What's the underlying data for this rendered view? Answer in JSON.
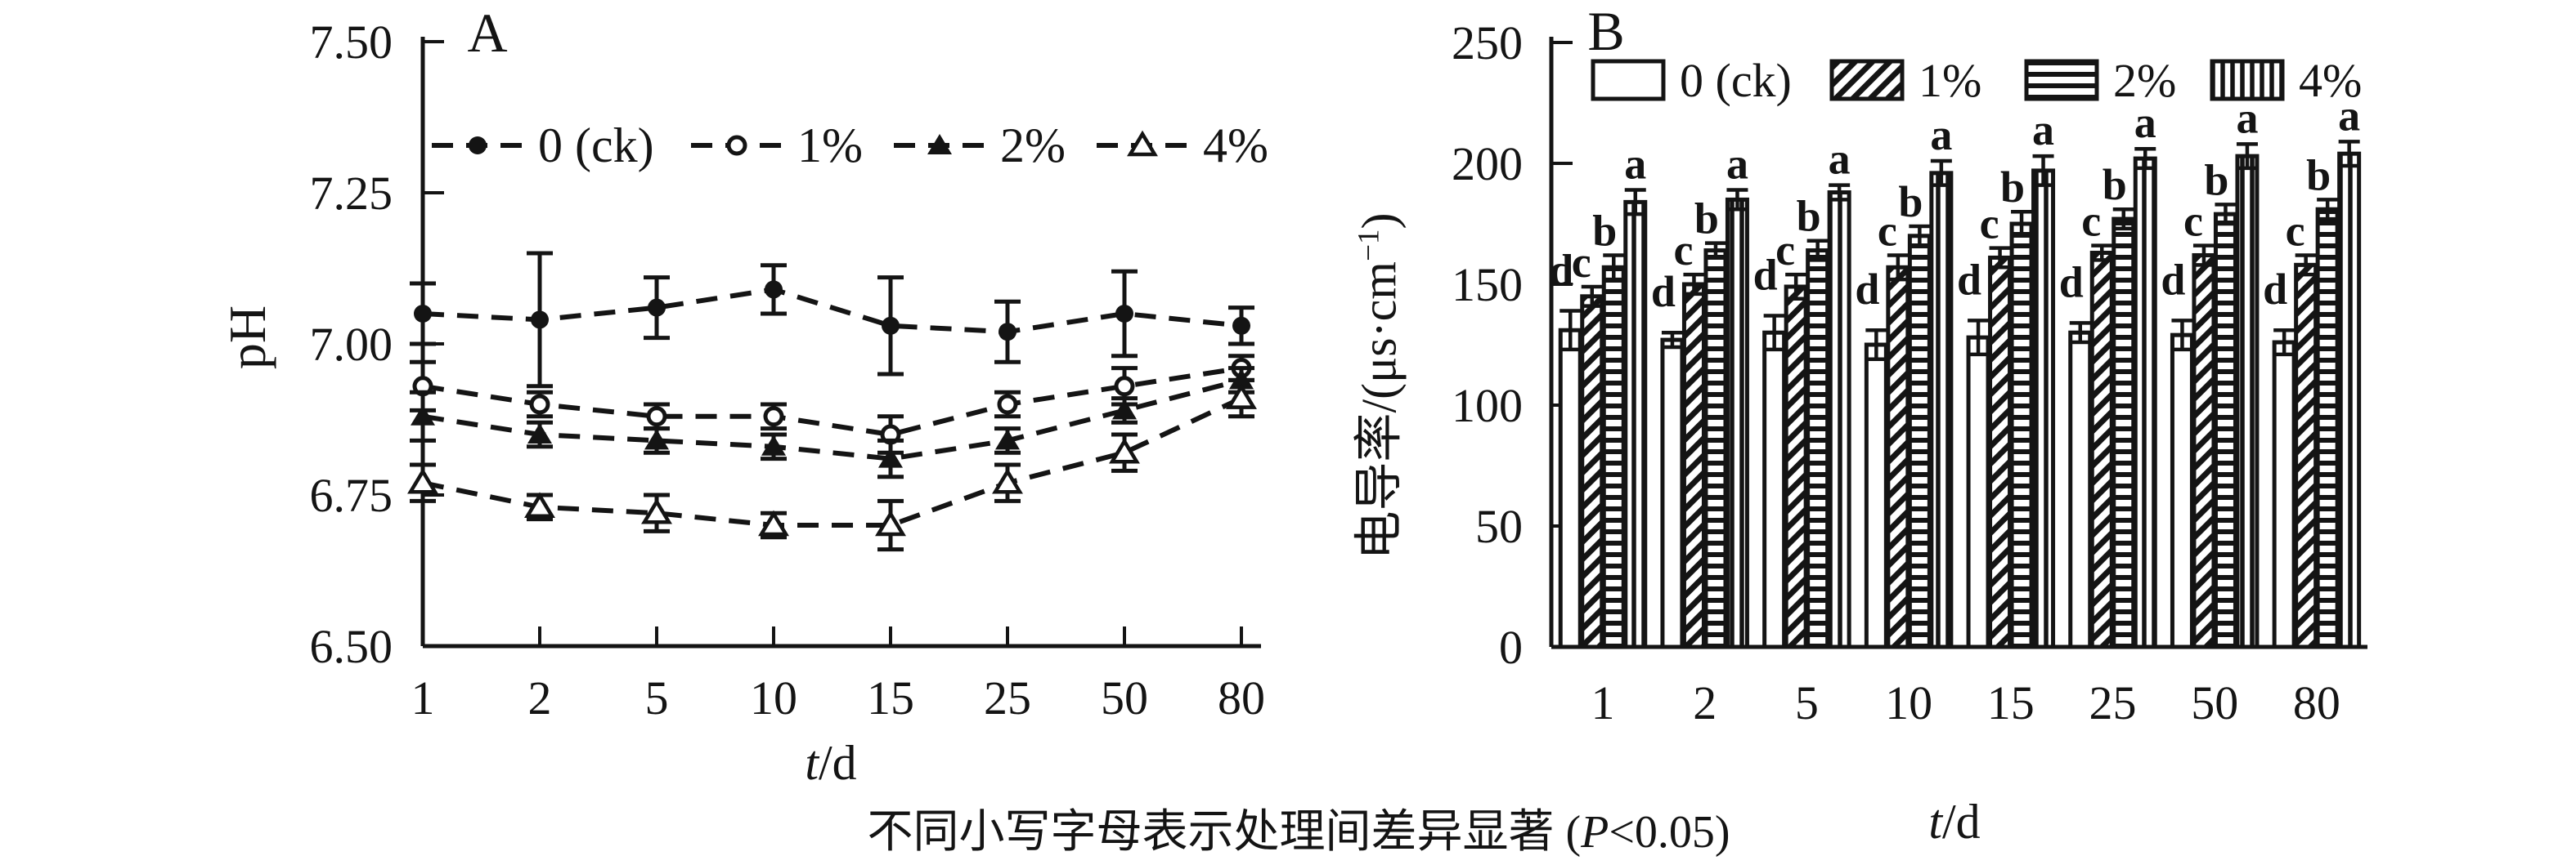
{
  "figure": {
    "ink_color": "#141414",
    "background_color": "#ffffff"
  },
  "caption": {
    "prefix": "不同小写字母表示处理间差异显著 (",
    "p": "P",
    "rest": "<0.05)"
  },
  "chart_data": [
    {
      "id": "A",
      "type": "line",
      "panel_label": "A",
      "ylabel": "pH",
      "xlabel_parts": {
        "var": "t",
        "rest": "/d"
      },
      "categories": [
        "1",
        "2",
        "5",
        "10",
        "15",
        "25",
        "50",
        "80"
      ],
      "ylim": [
        6.5,
        7.5
      ],
      "grid": false,
      "legend_position": "top-inside",
      "yticks": [
        {
          "v": 7.5,
          "label": "7.50"
        },
        {
          "v": 7.25,
          "label": "7.25"
        },
        {
          "v": 7.0,
          "label": "7.00"
        },
        {
          "v": 6.75,
          "label": "6.75"
        },
        {
          "v": 6.5,
          "label": "6.50"
        }
      ],
      "series": [
        {
          "name": "0 (ck)",
          "marker": "circle-filled",
          "line": "dashed",
          "values": [
            7.05,
            7.04,
            7.06,
            7.09,
            7.03,
            7.02,
            7.05,
            7.03
          ],
          "errors": [
            0.05,
            0.11,
            0.05,
            0.04,
            0.08,
            0.05,
            0.07,
            0.03
          ]
        },
        {
          "name": "1%",
          "marker": "circle-open",
          "line": "dashed",
          "values": [
            6.93,
            6.9,
            6.88,
            6.88,
            6.85,
            6.9,
            6.93,
            6.96
          ],
          "errors": [
            0.04,
            0.02,
            0.02,
            0.02,
            0.03,
            0.02,
            0.03,
            0.02
          ]
        },
        {
          "name": "2%",
          "marker": "triangle-filled",
          "line": "dashed",
          "values": [
            6.88,
            6.85,
            6.84,
            6.83,
            6.81,
            6.84,
            6.89,
            6.94
          ],
          "errors": [
            0.04,
            0.02,
            0.02,
            0.02,
            0.03,
            0.02,
            0.02,
            0.02
          ]
        },
        {
          "name": "4%",
          "marker": "triangle-open",
          "line": "dashed",
          "values": [
            6.77,
            6.73,
            6.72,
            6.7,
            6.7,
            6.77,
            6.82,
            6.91
          ],
          "errors": [
            0.03,
            0.02,
            0.03,
            0.02,
            0.04,
            0.03,
            0.03,
            0.03
          ]
        }
      ]
    },
    {
      "id": "B",
      "type": "bar",
      "panel_label": "B",
      "ylabel_parts": {
        "main": "电导率/(μs·cm",
        "sup": "−1",
        "end": ")"
      },
      "xlabel_parts": {
        "var": "t",
        "rest": "/d"
      },
      "categories": [
        "1",
        "2",
        "5",
        "10",
        "15",
        "25",
        "50",
        "80"
      ],
      "ylim": [
        0,
        250
      ],
      "grid": false,
      "legend_position": "top-inside",
      "yticks": [
        {
          "v": 250,
          "label": "250"
        },
        {
          "v": 200,
          "label": "200"
        },
        {
          "v": 150,
          "label": "150"
        },
        {
          "v": 100,
          "label": "100"
        },
        {
          "v": 50,
          "label": "50"
        },
        {
          "v": 0,
          "label": "0"
        }
      ],
      "series": [
        {
          "name": "0 (ck)",
          "pattern": "plain",
          "sig_letter": "d",
          "values": [
            131,
            127,
            130,
            125,
            128,
            130,
            129,
            126
          ],
          "errors": [
            8,
            3,
            7,
            6,
            7,
            4,
            6,
            5
          ]
        },
        {
          "name": "1%",
          "pattern": "diagonal",
          "sig_letter": "c",
          "values": [
            145,
            150,
            149,
            157,
            161,
            163,
            162,
            158
          ],
          "errors": [
            4,
            4,
            5,
            5,
            4,
            3,
            4,
            4
          ]
        },
        {
          "name": "2%",
          "pattern": "horizontal",
          "sig_letter": "b",
          "values": [
            157,
            164,
            164,
            170,
            175,
            177,
            179,
            181
          ],
          "errors": [
            5,
            3,
            4,
            4,
            5,
            4,
            4,
            4
          ]
        },
        {
          "name": "4%",
          "pattern": "vertical",
          "sig_letter": "a",
          "values": [
            184,
            185,
            188,
            196,
            197,
            202,
            203,
            204
          ],
          "errors": [
            5,
            4,
            3,
            5,
            6,
            4,
            5,
            5
          ]
        }
      ]
    }
  ]
}
